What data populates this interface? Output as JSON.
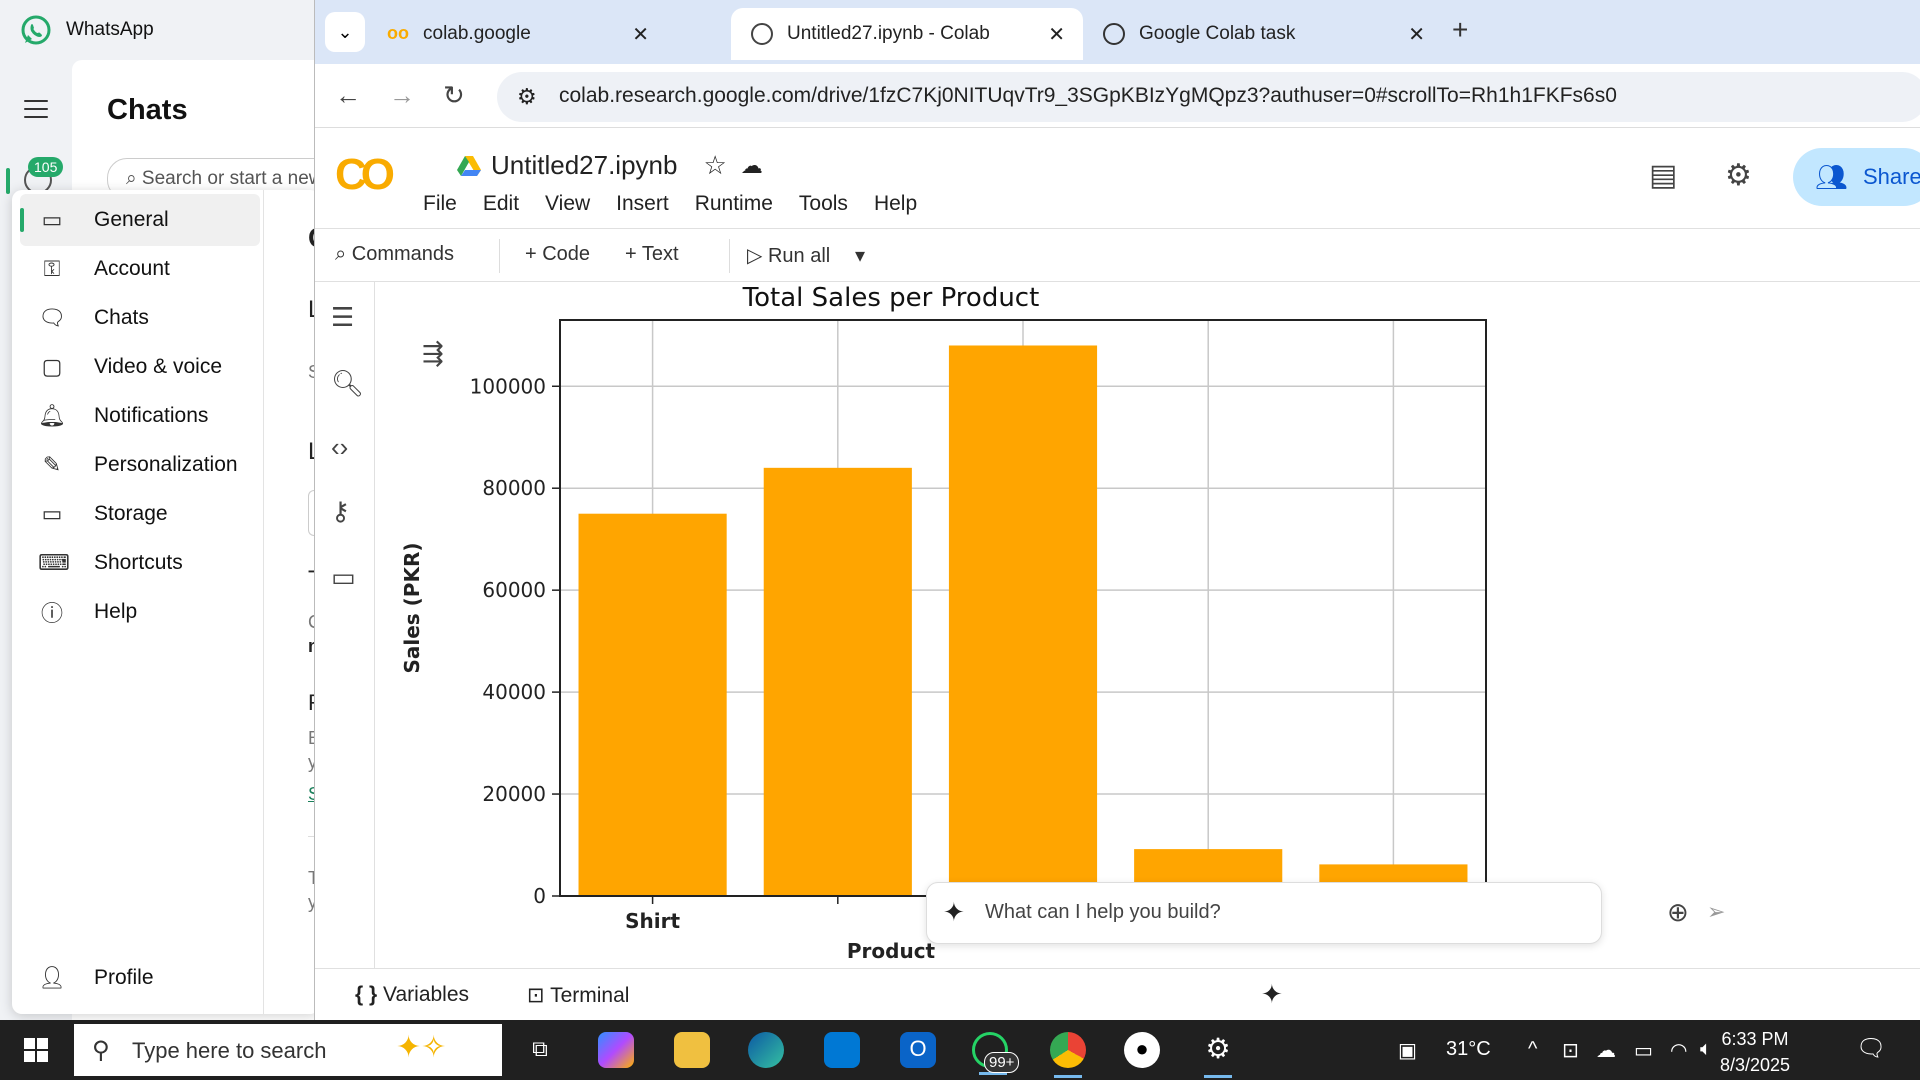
{
  "whatsapp": {
    "title": "WhatsApp",
    "badge": "105",
    "chats_title": "Chats",
    "search_placeholder": "Search or start a new chat",
    "settings_nav": [
      {
        "label": "General",
        "icon": "laptop-icon"
      },
      {
        "label": "Account",
        "icon": "key-icon"
      },
      {
        "label": "Chats",
        "icon": "chat-bubbles-icon"
      },
      {
        "label": "Video & voice",
        "icon": "video-icon"
      },
      {
        "label": "Notifications",
        "icon": "bell-icon"
      },
      {
        "label": "Personalization",
        "icon": "brush-icon"
      },
      {
        "label": "Storage",
        "icon": "storage-icon"
      },
      {
        "label": "Shortcuts",
        "icon": "keyboard-icon"
      },
      {
        "label": "Help",
        "icon": "info-icon"
      }
    ],
    "profile_label": "Profile",
    "right_fragments": [
      "G",
      "Lo",
      "St",
      "La",
      "Ty",
      "Ch",
      "m",
      "Re",
      "En",
      "yo",
      "Se",
      "To",
      "yo"
    ]
  },
  "browser": {
    "tabs": [
      {
        "title": "colab.google",
        "icon": "colab-icon"
      },
      {
        "title": "Untitled27.ipynb - Colab",
        "icon": "globe-icon"
      },
      {
        "title": "Google Colab task",
        "icon": "openai-icon"
      }
    ],
    "url": "colab.research.google.com/drive/1fzC7Kj0NITUqvTr9_3SGpKBIzYgMQpz3?authuser=0#scrollTo=Rh1h1FKFs6s0"
  },
  "colab": {
    "logo": "CO",
    "notebook_title": "Untitled27.ipynb",
    "menu": [
      "File",
      "Edit",
      "View",
      "Insert",
      "Runtime",
      "Tools",
      "Help"
    ],
    "share_label": "Share",
    "toolbar": {
      "commands": "Commands",
      "code": "+ Code",
      "text": "+ Text",
      "run_all": "Run all"
    },
    "gemini_placeholder": "What can I help you build?",
    "status": {
      "variables": "Variables",
      "terminal": "Terminal"
    }
  },
  "chart_data": {
    "type": "bar",
    "title": "Total Sales per Product",
    "xlabel": "Product",
    "ylabel": "Sales (PKR)",
    "categories": [
      "Shirt",
      "",
      "",
      "",
      ""
    ],
    "values": [
      75000,
      84000,
      108000,
      9200,
      6200
    ],
    "ylim": [
      0,
      113000
    ],
    "yticks": [
      0,
      20000,
      40000,
      60000,
      80000,
      100000
    ],
    "grid": true,
    "bar_color": "#ffa500"
  },
  "taskbar": {
    "search_placeholder": "Type here to search",
    "weather": "31°C",
    "time": "6:33 PM",
    "date": "8/3/2025",
    "whatsapp_badge": "99+"
  }
}
